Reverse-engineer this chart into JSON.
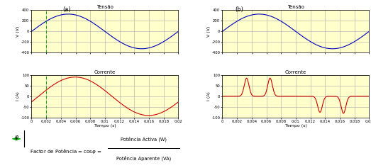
{
  "title_a": "(a)",
  "title_b": "(b)",
  "voltage_title": "Tensão",
  "current_title": "Corrente",
  "xlabel": "Tempo (s)",
  "ylabel_v": "V (V)",
  "ylabel_i": "I (A)",
  "bg_color": "#ffffcc",
  "voltage_color": "#0000bb",
  "current_color": "#cc0000",
  "dashed_color": "#00aa00",
  "grid_color": "#aaaaaa",
  "xlim": [
    0,
    0.02
  ],
  "xticks": [
    0,
    0.002,
    0.004,
    0.006,
    0.008,
    0.01,
    0.012,
    0.014,
    0.016,
    0.018,
    0.02
  ],
  "xtick_labels": [
    "0",
    "0.002",
    "0.004",
    "0.006",
    "0.008",
    "0.01",
    "0.012",
    "0.014",
    "0.016",
    "0.018",
    "0.02"
  ],
  "v_ylim": [
    -400,
    400
  ],
  "v_yticks": [
    -400,
    -200,
    0,
    200,
    400
  ],
  "i_ylim": [
    -100,
    100
  ],
  "i_yticks": [
    -100,
    -50,
    0,
    50,
    100
  ],
  "voltage_amplitude": 325,
  "voltage_freq": 50,
  "current_amplitude_a": 90,
  "current_phase_a": 0.3,
  "footer_num": "Potência Activa (W)",
  "footer_den": "Potência Aparente (VA)",
  "footer_label": "Factor de Potência = cosφ = "
}
